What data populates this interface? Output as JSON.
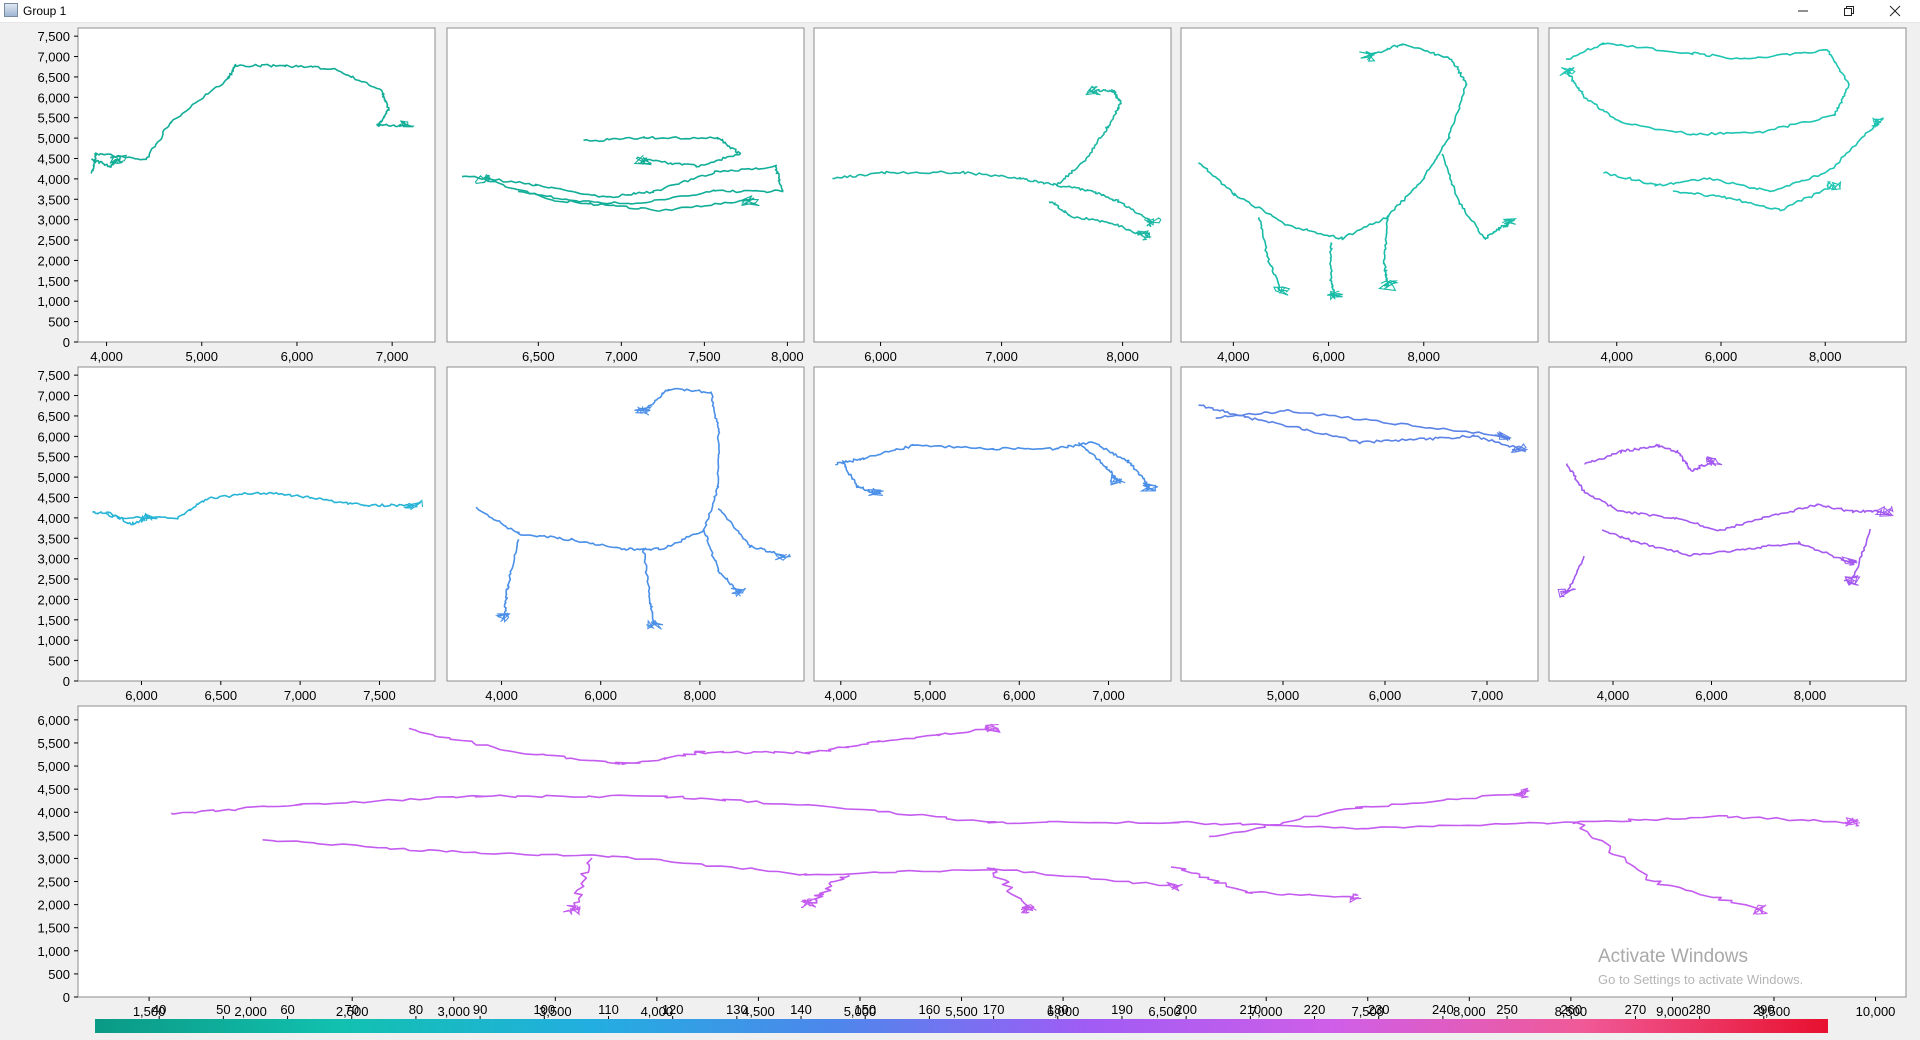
{
  "window": {
    "title": "Group 1",
    "icon": "java-app-icon",
    "controls": {
      "minimize": "minimize-icon",
      "restore": "restore-icon",
      "close": "close-icon"
    }
  },
  "chart_data": [
    {
      "type": "line",
      "name": "panel-r1c1",
      "xticks": [
        4000,
        5000,
        6000,
        7000
      ],
      "xlim": [
        3700,
        7450
      ],
      "yticks": [
        0,
        500,
        1000,
        1500,
        2000,
        2500,
        3000,
        3500,
        4000,
        4500,
        5000,
        5500,
        6000,
        6500,
        7000,
        7500
      ],
      "ylim": [
        0,
        7700
      ],
      "color": "#12ad97"
    },
    {
      "type": "line",
      "name": "panel-r1c2",
      "xticks": [
        6500,
        7000,
        7500,
        8000
      ],
      "xlim": [
        5950,
        8100
      ],
      "ylim": [
        0,
        7700
      ],
      "color": "#12ad97"
    },
    {
      "type": "line",
      "name": "panel-r1c3",
      "xticks": [
        6000,
        7000,
        8000
      ],
      "xlim": [
        5450,
        8400
      ],
      "ylim": [
        0,
        7700
      ],
      "color": "#1cb7a3"
    },
    {
      "type": "line",
      "name": "panel-r1c4",
      "xticks": [
        4000,
        6000,
        8000
      ],
      "xlim": [
        2900,
        10400
      ],
      "ylim": [
        0,
        7700
      ],
      "color": "#17bba6"
    },
    {
      "type": "line",
      "name": "panel-r1c5",
      "xticks": [
        4000,
        6000,
        8000
      ],
      "xlim": [
        2700,
        9550
      ],
      "ylim": [
        0,
        7700
      ],
      "color": "#1fc5b2"
    },
    {
      "type": "line",
      "name": "panel-r2c1",
      "xticks": [
        6000,
        6500,
        7000,
        7500
      ],
      "xlim": [
        5600,
        7850
      ],
      "yticks": [
        0,
        500,
        1000,
        1500,
        2000,
        2500,
        3000,
        3500,
        4000,
        4500,
        5000,
        5500,
        6000,
        6500,
        7000,
        7500
      ],
      "ylim": [
        0,
        7700
      ],
      "color": "#27b4d6"
    },
    {
      "type": "line",
      "name": "panel-r2c2",
      "xticks": [
        4000,
        6000,
        8000
      ],
      "xlim": [
        2900,
        10100
      ],
      "ylim": [
        0,
        7700
      ],
      "color": "#4a8fe8"
    },
    {
      "type": "line",
      "name": "panel-r2c3",
      "xticks": [
        4000,
        5000,
        6000,
        7000
      ],
      "xlim": [
        3700,
        7700
      ],
      "ylim": [
        0,
        7700
      ],
      "color": "#4a8fe8"
    },
    {
      "type": "line",
      "name": "panel-r2c4",
      "xticks": [
        5000,
        6000,
        7000
      ],
      "xlim": [
        4000,
        7500
      ],
      "ylim": [
        0,
        7700
      ],
      "color": "#5b82e6"
    },
    {
      "type": "line",
      "name": "panel-r2c5",
      "xticks": [
        4000,
        6000,
        8000
      ],
      "xlim": [
        2700,
        9950
      ],
      "ylim": [
        0,
        7700
      ],
      "color": "#a45af0"
    },
    {
      "type": "line",
      "name": "panel-r3",
      "xticks": [
        1500,
        2000,
        2500,
        3000,
        3500,
        4000,
        4500,
        5000,
        5500,
        6000,
        6500,
        7000,
        7500,
        8000,
        8500,
        9000,
        9500,
        10000
      ],
      "xlim": [
        1150,
        10150
      ],
      "yticks": [
        0,
        500,
        1000,
        1500,
        2000,
        2500,
        3000,
        3500,
        4000,
        4500,
        5000,
        5500,
        6000
      ],
      "ylim": [
        0,
        6300
      ],
      "color": "#c45cf0"
    }
  ],
  "colorbar": {
    "ticks": [
      40,
      50,
      60,
      70,
      80,
      90,
      100,
      110,
      120,
      130,
      140,
      150,
      160,
      170,
      180,
      190,
      200,
      210,
      220,
      230,
      240,
      250,
      260,
      270,
      280,
      290
    ],
    "range": [
      30,
      300
    ],
    "stops": [
      "#0a9a85",
      "#12c1b0",
      "#22aee0",
      "#4e86ec",
      "#9f5cf5",
      "#cf5ee8",
      "#f05a98",
      "#e8102e"
    ]
  },
  "watermark": {
    "title": "Activate Windows",
    "subtitle": "Go to Settings to activate Windows."
  }
}
